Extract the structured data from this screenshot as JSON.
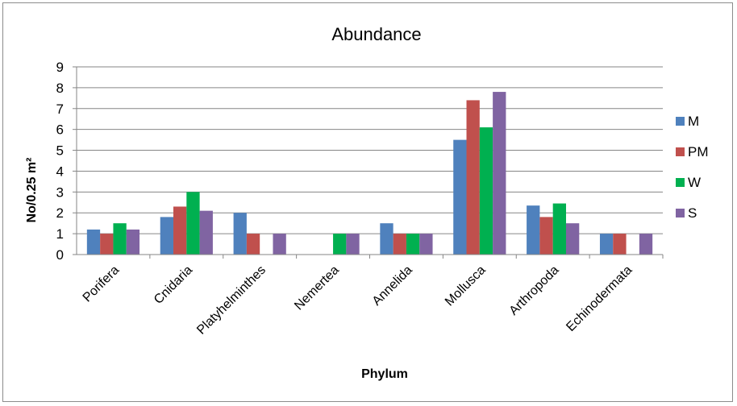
{
  "chart_data": {
    "type": "bar",
    "title": "Abundance",
    "xlabel": "Phylum",
    "ylabel": "No/0.25 m²",
    "ylim": [
      0,
      9
    ],
    "yticks": [
      0,
      1,
      2,
      3,
      4,
      5,
      6,
      7,
      8,
      9
    ],
    "grid": true,
    "legend_position": "right",
    "categories": [
      "Porifera",
      "Cnidaria",
      "Platyhelminthes",
      "Nemertea",
      "Annelida",
      "Mollusca",
      "Arthropoda",
      "Echinodermata"
    ],
    "series": [
      {
        "name": "M",
        "color": "#4f81bd",
        "values": [
          1.2,
          1.8,
          2.0,
          0.0,
          1.5,
          5.5,
          2.35,
          1.0
        ]
      },
      {
        "name": "PM",
        "color": "#c0504d",
        "values": [
          1.0,
          2.3,
          1.0,
          0.0,
          1.0,
          7.4,
          1.8,
          1.0
        ]
      },
      {
        "name": "W",
        "color": "#00b050",
        "values": [
          1.5,
          3.0,
          0.0,
          1.0,
          1.0,
          6.1,
          2.45,
          0.0
        ]
      },
      {
        "name": "S",
        "color": "#8064a2",
        "values": [
          1.2,
          2.1,
          1.0,
          1.0,
          1.0,
          7.8,
          1.5,
          1.0
        ]
      }
    ]
  }
}
